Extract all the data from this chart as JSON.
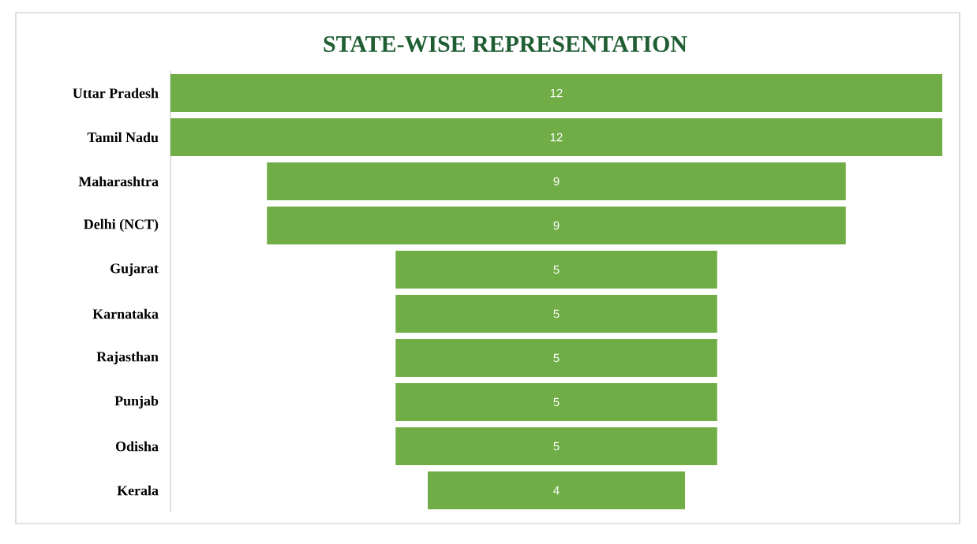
{
  "chart_data": {
    "type": "other",
    "title": "STATE-WISE REPRESENTATION",
    "categories": [
      "Uttar Pradesh",
      "Tamil Nadu",
      "Maharashtra",
      "Delhi (NCT)",
      "Gujarat",
      "Karnataka",
      "Rajasthan",
      "Punjab",
      "Odisha",
      "Kerala"
    ],
    "values": [
      12,
      12,
      9,
      9,
      5,
      5,
      5,
      5,
      5,
      4
    ],
    "color": "#70ad47",
    "data_labels": true
  }
}
